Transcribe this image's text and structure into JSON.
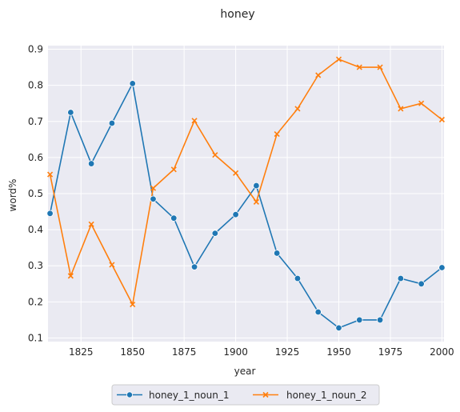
{
  "chart_data": {
    "type": "line",
    "title": "honey",
    "xlabel": "year",
    "ylabel": "word%",
    "xlim": [
      1809,
      2001
    ],
    "ylim": [
      0.09,
      0.91
    ],
    "x_ticks": [
      1825,
      1850,
      1875,
      1900,
      1925,
      1950,
      1975,
      2000
    ],
    "y_ticks": [
      0.1,
      0.2,
      0.3,
      0.4,
      0.5,
      0.6,
      0.7,
      0.8,
      0.9
    ],
    "grid": true,
    "background": "#eaeaf2",
    "legend_position": "bottom-center",
    "x": [
      1810,
      1820,
      1830,
      1840,
      1850,
      1860,
      1870,
      1880,
      1890,
      1900,
      1910,
      1920,
      1930,
      1940,
      1950,
      1960,
      1970,
      1980,
      1990,
      2000
    ],
    "series": [
      {
        "name": "honey_1_noun_1",
        "color": "#1f77b4",
        "marker": "circle",
        "values": [
          0.445,
          0.725,
          0.583,
          0.695,
          0.805,
          0.485,
          0.432,
          0.297,
          0.39,
          0.442,
          0.522,
          0.335,
          0.265,
          0.172,
          0.128,
          0.15,
          0.15,
          0.265,
          0.25,
          0.295
        ]
      },
      {
        "name": "honey_1_noun_2",
        "color": "#ff7f0e",
        "marker": "x",
        "values": [
          0.553,
          0.272,
          0.415,
          0.303,
          0.193,
          0.515,
          0.567,
          0.702,
          0.607,
          0.557,
          0.477,
          0.665,
          0.735,
          0.828,
          0.872,
          0.85,
          0.85,
          0.735,
          0.75,
          0.705
        ]
      }
    ]
  }
}
